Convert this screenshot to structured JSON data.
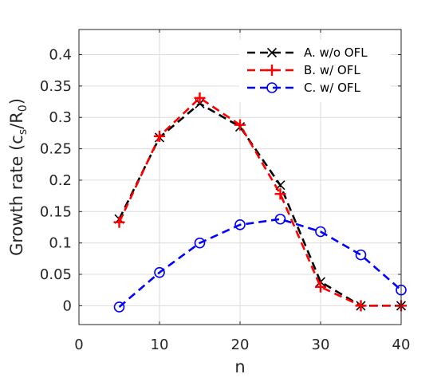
{
  "chart_data": {
    "type": "line",
    "xlabel": "n",
    "ylabel": "Growth rate (c",
    "ylabel_sub1": "s",
    "ylabel_mid": "/R",
    "ylabel_sub2": "0",
    "ylabel_end": ")",
    "xlim": [
      0,
      40
    ],
    "ylim": [
      -0.03,
      0.44
    ],
    "xticks": [
      0,
      10,
      20,
      30,
      40
    ],
    "yticks": [
      0,
      0.05,
      0.1,
      0.15,
      0.2,
      0.25,
      0.3,
      0.35,
      0.4
    ],
    "xtick_labels": [
      "0",
      "10",
      "20",
      "30",
      "40"
    ],
    "ytick_labels": [
      "0",
      "0.05",
      "0.1",
      "0.15",
      "0.2",
      "0.25",
      "0.3",
      "0.35",
      "0.4"
    ],
    "grid": true,
    "legend_position": "top-right",
    "x": [
      5,
      10,
      15,
      20,
      25,
      30,
      35,
      40
    ],
    "series": [
      {
        "name": "A. w/o OFL",
        "color": "#000000",
        "marker": "x",
        "values": [
          0.138,
          0.268,
          0.322,
          0.285,
          0.192,
          0.038,
          0.0,
          0.0
        ]
      },
      {
        "name": "B. w/ OFL",
        "color": "#ff0000",
        "marker": "+",
        "values": [
          0.133,
          0.27,
          0.331,
          0.288,
          0.178,
          0.03,
          0.0,
          0.0
        ]
      },
      {
        "name": "C. w/ OFL",
        "color": "#0000ff",
        "marker": "o",
        "values": [
          -0.002,
          0.053,
          0.1,
          0.129,
          0.138,
          0.118,
          0.081,
          0.025
        ]
      }
    ]
  }
}
